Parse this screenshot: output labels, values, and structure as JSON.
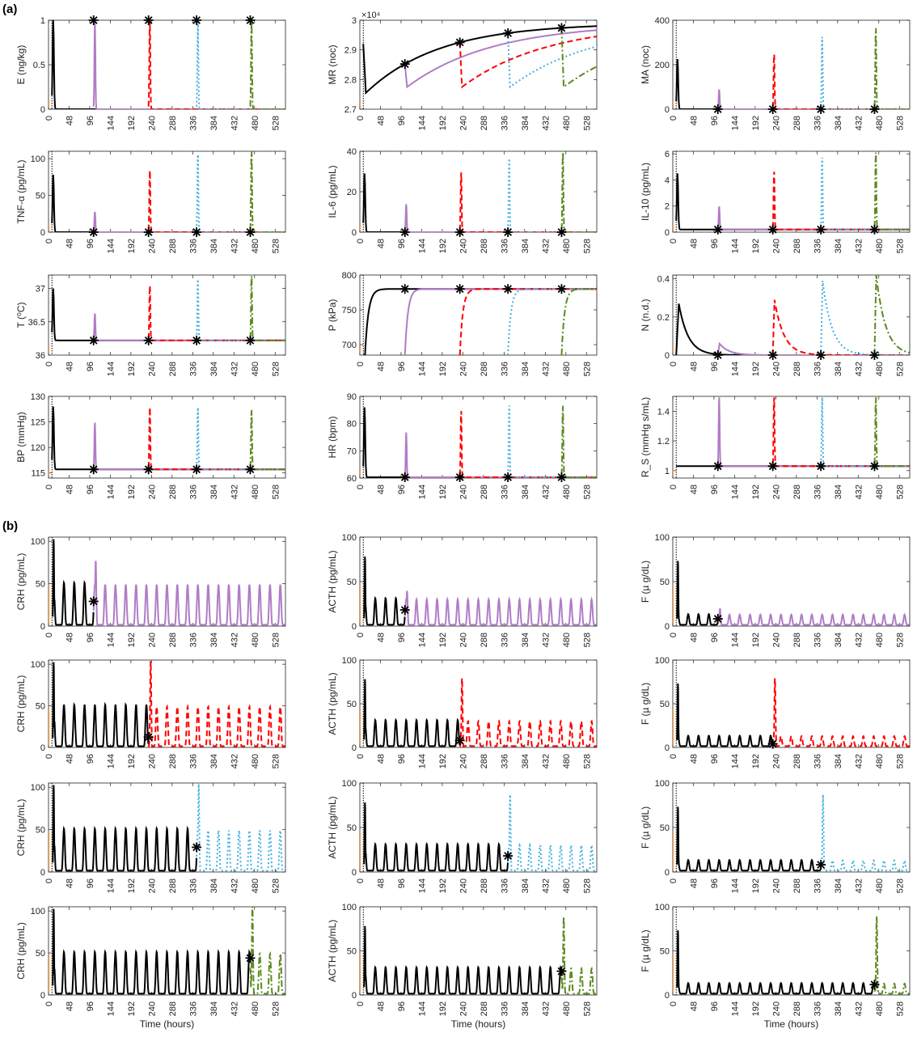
{
  "figure": {
    "panel_a_label": "(a)",
    "panel_b_label": "(b)",
    "xlabel": "Time (hours)",
    "colors": {
      "baseline": "#000000",
      "case1": "#b07cc6",
      "case2": "#ff0000",
      "case3": "#3fb0e0",
      "case4": "#5a8a1e",
      "initial": "#f5a04a",
      "marker": "#000000"
    },
    "line_styles": {
      "case1": "solid",
      "case2": "dashed",
      "case3": "dotted",
      "case4": "dashdot"
    },
    "second_hit_times": [
      105,
      233,
      345,
      470
    ]
  },
  "chart_data": [
    {
      "id": "E",
      "type": "line",
      "ylabel": "E (ng/kg)",
      "ylim": [
        0,
        1
      ],
      "yticks": [
        "0",
        "0.5",
        "1"
      ],
      "ytick_values": [
        0,
        0.5,
        1
      ],
      "xlim": [
        0,
        552
      ],
      "xticks": [
        0,
        48,
        96,
        144,
        192,
        240,
        288,
        336,
        384,
        432,
        480,
        528
      ],
      "kind": "spike",
      "baseline": 0,
      "peak": 1,
      "marker_y": 1
    },
    {
      "id": "MR",
      "type": "line",
      "ylabel": "MR (noc)",
      "exponent_label": "×10⁴",
      "ylim": [
        27000,
        30000
      ],
      "yticks": [
        "2.7",
        "2.8",
        "2.9",
        "3"
      ],
      "ytick_values": [
        27000,
        28000,
        29000,
        30000
      ],
      "xlim": [
        0,
        552
      ],
      "xticks": [
        0,
        48,
        96,
        144,
        192,
        240,
        288,
        336,
        384,
        432,
        480,
        528
      ],
      "kind": "recovery",
      "baseline": 27600,
      "plateau": 29900,
      "drop": 27600
    },
    {
      "id": "MA",
      "type": "line",
      "ylabel": "MA (noc)",
      "ylim": [
        0,
        400
      ],
      "yticks": [
        "0",
        "200",
        "400"
      ],
      "ytick_values": [
        0,
        200,
        400
      ],
      "xlim": [
        0,
        552
      ],
      "xticks": [
        0,
        48,
        96,
        144,
        192,
        240,
        288,
        336,
        384,
        432,
        480,
        528
      ],
      "kind": "spike",
      "baseline": 0,
      "peaks": [
        225,
        90,
        250,
        330,
        370
      ]
    },
    {
      "id": "TNF",
      "type": "line",
      "ylabel": "TNF-α (pg/mL)",
      "ylim": [
        0,
        110
      ],
      "yticks": [
        "0",
        "50",
        "100"
      ],
      "ytick_values": [
        0,
        50,
        100
      ],
      "xlim": [
        0,
        552
      ],
      "xticks": [
        0,
        48,
        96,
        144,
        192,
        240,
        288,
        336,
        384,
        432,
        480,
        528
      ],
      "kind": "spike",
      "baseline": 0,
      "peaks": [
        78,
        28,
        85,
        107,
        112
      ]
    },
    {
      "id": "IL6",
      "type": "line",
      "ylabel": "IL-6 (pg/mL)",
      "ylim": [
        0,
        40
      ],
      "yticks": [
        "0",
        "20",
        "40"
      ],
      "ytick_values": [
        0,
        20,
        40
      ],
      "xlim": [
        0,
        552
      ],
      "xticks": [
        0,
        48,
        96,
        144,
        192,
        240,
        288,
        336,
        384,
        432,
        480,
        528
      ],
      "kind": "spike",
      "baseline": 0,
      "peaks": [
        29,
        14,
        30,
        37,
        40
      ]
    },
    {
      "id": "IL10",
      "type": "line",
      "ylabel": "IL-10 (pg/mL)",
      "ylim": [
        0,
        6.2
      ],
      "yticks": [
        "0",
        "2",
        "4",
        "6"
      ],
      "ytick_values": [
        0,
        2,
        4,
        6
      ],
      "xlim": [
        0,
        552
      ],
      "xticks": [
        0,
        48,
        96,
        144,
        192,
        240,
        288,
        336,
        384,
        432,
        480,
        528
      ],
      "kind": "spike",
      "baseline": 0.2,
      "peaks": [
        4.5,
        2.0,
        4.7,
        5.8,
        6.2
      ]
    },
    {
      "id": "T",
      "type": "line",
      "ylabel": "T (⁰C)",
      "ylim": [
        36,
        37.2
      ],
      "yticks": [
        "36",
        "36.5",
        "37"
      ],
      "ytick_values": [
        36,
        36.5,
        37
      ],
      "xlim": [
        0,
        552
      ],
      "xticks": [
        0,
        48,
        96,
        144,
        192,
        240,
        288,
        336,
        384,
        432,
        480,
        528
      ],
      "kind": "spike",
      "baseline": 36.22,
      "peaks": [
        37.0,
        36.63,
        37.05,
        37.15,
        37.2
      ]
    },
    {
      "id": "P",
      "type": "line",
      "ylabel": "P (kPa)",
      "ylim": [
        685,
        800
      ],
      "yticks": [
        "700",
        "750",
        "800"
      ],
      "ytick_values": [
        700,
        750,
        800
      ],
      "xlim": [
        0,
        552
      ],
      "xticks": [
        0,
        48,
        96,
        144,
        192,
        240,
        288,
        336,
        384,
        432,
        480,
        528
      ],
      "kind": "dip",
      "baseline": 780,
      "low": 685
    },
    {
      "id": "N",
      "type": "line",
      "ylabel": "N (n.d.)",
      "ylim": [
        0,
        0.42
      ],
      "yticks": [
        "0",
        "0.2",
        "0.4"
      ],
      "ytick_values": [
        0,
        0.2,
        0.4
      ],
      "xlim": [
        0,
        552
      ],
      "xticks": [
        0,
        48,
        96,
        144,
        192,
        240,
        288,
        336,
        384,
        432,
        480,
        528
      ],
      "kind": "decay",
      "baseline": 0,
      "peaks": [
        0.27,
        0.06,
        0.29,
        0.39,
        0.42
      ]
    },
    {
      "id": "BP",
      "type": "line",
      "ylabel": "BP (mmHg)",
      "ylim": [
        114,
        130
      ],
      "yticks": [
        "115",
        "120",
        "125",
        "130"
      ],
      "ytick_values": [
        115,
        120,
        125,
        130
      ],
      "xlim": [
        0,
        552
      ],
      "xticks": [
        0,
        48,
        96,
        144,
        192,
        240,
        288,
        336,
        384,
        432,
        480,
        528
      ],
      "kind": "spike",
      "baseline": 115.7,
      "peaks": [
        128,
        125,
        128,
        128,
        127.5
      ]
    },
    {
      "id": "HR",
      "type": "line",
      "ylabel": "HR (bpm)",
      "ylim": [
        60,
        90
      ],
      "yticks": [
        "60",
        "70",
        "80",
        "90"
      ],
      "ytick_values": [
        60,
        70,
        80,
        90
      ],
      "xlim": [
        0,
        552
      ],
      "xticks": [
        0,
        48,
        96,
        144,
        192,
        240,
        288,
        336,
        384,
        432,
        480,
        528
      ],
      "kind": "spike",
      "baseline": 60.3,
      "peaks": [
        86,
        77,
        85,
        87,
        87
      ]
    },
    {
      "id": "RS",
      "type": "line",
      "ylabel": "R_S (mmHg s/mL)",
      "ylim": [
        0.95,
        1.5
      ],
      "yticks": [
        "1",
        "1.2",
        "1.4"
      ],
      "ytick_values": [
        1,
        1.2,
        1.4
      ],
      "xlim": [
        0,
        552
      ],
      "xticks": [
        0,
        48,
        96,
        144,
        192,
        240,
        288,
        336,
        384,
        432,
        480,
        528
      ],
      "kind": "spike",
      "baseline": 1.03,
      "peaks": [
        1.03,
        1.5,
        1.5,
        1.5,
        1.5
      ]
    },
    {
      "id": "CRH1",
      "type": "line",
      "ylabel": "CRH (pg/mL)",
      "ylim": [
        0,
        105
      ],
      "yticks": [
        "0",
        "50",
        "100"
      ],
      "ytick_values": [
        0,
        50,
        100
      ],
      "xlim": [
        0,
        552
      ],
      "xticks": [
        0,
        48,
        96,
        144,
        192,
        240,
        288,
        336,
        384,
        432,
        480,
        528
      ],
      "kind": "osc",
      "case": 1,
      "amp": 50,
      "first": 105,
      "second": 78
    },
    {
      "id": "ACTH1",
      "type": "line",
      "ylabel": "ACTH (pg/mL)",
      "ylim": [
        0,
        100
      ],
      "yticks": [
        "0",
        "50",
        "100"
      ],
      "ytick_values": [
        0,
        50,
        100
      ],
      "xlim": [
        0,
        552
      ],
      "xticks": [
        0,
        48,
        96,
        144,
        192,
        240,
        288,
        336,
        384,
        432,
        480,
        528
      ],
      "kind": "osc",
      "case": 1,
      "amp": 30,
      "first": 80,
      "second": 40
    },
    {
      "id": "F1",
      "type": "line",
      "ylabel": "F (µ g/dL)",
      "ylim": [
        0,
        100
      ],
      "yticks": [
        "0",
        "50",
        "100"
      ],
      "ytick_values": [
        0,
        50,
        100
      ],
      "xlim": [
        0,
        552
      ],
      "xticks": [
        0,
        48,
        96,
        144,
        192,
        240,
        288,
        336,
        384,
        432,
        480,
        528
      ],
      "kind": "osc",
      "case": 1,
      "amp": 12,
      "first": 75,
      "second": 20
    },
    {
      "id": "CRH2",
      "type": "line",
      "ylabel": "CRH (pg/mL)",
      "ylim": [
        0,
        105
      ],
      "yticks": [
        "0",
        "50",
        "100"
      ],
      "ytick_values": [
        0,
        50,
        100
      ],
      "xlim": [
        0,
        552
      ],
      "xticks": [
        0,
        48,
        96,
        144,
        192,
        240,
        288,
        336,
        384,
        432,
        480,
        528
      ],
      "kind": "osc",
      "case": 2,
      "amp": 50,
      "first": 105,
      "second": 105
    },
    {
      "id": "ACTH2",
      "type": "line",
      "ylabel": "ACTH (pg/mL)",
      "ylim": [
        0,
        100
      ],
      "yticks": [
        "0",
        "50",
        "100"
      ],
      "ytick_values": [
        0,
        50,
        100
      ],
      "xlim": [
        0,
        552
      ],
      "xticks": [
        0,
        48,
        96,
        144,
        192,
        240,
        288,
        336,
        384,
        432,
        480,
        528
      ],
      "kind": "osc",
      "case": 2,
      "amp": 30,
      "first": 80,
      "second": 80
    },
    {
      "id": "F2",
      "type": "line",
      "ylabel": "F (µ g/dL)",
      "ylim": [
        0,
        100
      ],
      "yticks": [
        "0",
        "50",
        "100"
      ],
      "ytick_values": [
        0,
        50,
        100
      ],
      "xlim": [
        0,
        552
      ],
      "xticks": [
        0,
        48,
        96,
        144,
        192,
        240,
        288,
        336,
        384,
        432,
        480,
        528
      ],
      "kind": "osc",
      "case": 2,
      "amp": 12,
      "first": 75,
      "second": 80
    },
    {
      "id": "CRH3",
      "type": "line",
      "ylabel": "CRH (pg/mL)",
      "ylim": [
        0,
        105
      ],
      "yticks": [
        "0",
        "50",
        "100"
      ],
      "ytick_values": [
        0,
        50,
        100
      ],
      "xlim": [
        0,
        552
      ],
      "xticks": [
        0,
        48,
        96,
        144,
        192,
        240,
        288,
        336,
        384,
        432,
        480,
        528
      ],
      "kind": "osc",
      "case": 3,
      "amp": 50,
      "first": 105,
      "second": 105
    },
    {
      "id": "ACTH3",
      "type": "line",
      "ylabel": "ACTH (pg/mL)",
      "ylim": [
        0,
        100
      ],
      "yticks": [
        "0",
        "50",
        "100"
      ],
      "ytick_values": [
        0,
        50,
        100
      ],
      "xlim": [
        0,
        552
      ],
      "xticks": [
        0,
        48,
        96,
        144,
        192,
        240,
        288,
        336,
        384,
        432,
        480,
        528
      ],
      "kind": "osc",
      "case": 3,
      "amp": 30,
      "first": 80,
      "second": 88
    },
    {
      "id": "F3",
      "type": "line",
      "ylabel": "F (µ g/dL)",
      "ylim": [
        0,
        100
      ],
      "yticks": [
        "0",
        "50",
        "100"
      ],
      "ytick_values": [
        0,
        50,
        100
      ],
      "xlim": [
        0,
        552
      ],
      "xticks": [
        0,
        48,
        96,
        144,
        192,
        240,
        288,
        336,
        384,
        432,
        480,
        528
      ],
      "kind": "osc",
      "case": 3,
      "amp": 12,
      "first": 75,
      "second": 88
    },
    {
      "id": "CRH4",
      "type": "line",
      "ylabel": "CRH (pg/mL)",
      "ylim": [
        0,
        105
      ],
      "yticks": [
        "0",
        "50",
        "100"
      ],
      "ytick_values": [
        0,
        50,
        100
      ],
      "xlim": [
        0,
        552
      ],
      "xticks": [
        0,
        48,
        96,
        144,
        192,
        240,
        288,
        336,
        384,
        432,
        480,
        528
      ],
      "kind": "osc",
      "case": 4,
      "amp": 50,
      "first": 105,
      "second": 108
    },
    {
      "id": "ACTH4",
      "type": "line",
      "ylabel": "ACTH (pg/mL)",
      "ylim": [
        0,
        100
      ],
      "yticks": [
        "0",
        "50",
        "100"
      ],
      "ytick_values": [
        0,
        50,
        100
      ],
      "xlim": [
        0,
        552
      ],
      "xticks": [
        0,
        48,
        96,
        144,
        192,
        240,
        288,
        336,
        384,
        432,
        480,
        528
      ],
      "kind": "osc",
      "case": 4,
      "amp": 30,
      "first": 80,
      "second": 90
    },
    {
      "id": "F4",
      "type": "line",
      "ylabel": "F (µ g/dL)",
      "ylim": [
        0,
        100
      ],
      "yticks": [
        "0",
        "50",
        "100"
      ],
      "ytick_values": [
        0,
        50,
        100
      ],
      "xlim": [
        0,
        552
      ],
      "xticks": [
        0,
        48,
        96,
        144,
        192,
        240,
        288,
        336,
        384,
        432,
        480,
        528
      ],
      "kind": "osc",
      "case": 4,
      "amp": 12,
      "first": 75,
      "second": 90
    }
  ]
}
